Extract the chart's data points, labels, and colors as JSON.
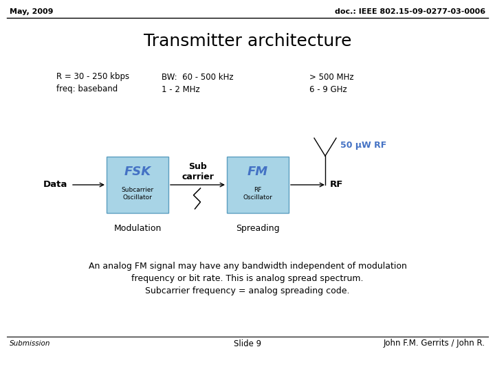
{
  "header_left": "May, 2009",
  "header_right": "doc.: IEEE 802.15-09-0277-03-0006",
  "title": "Transmitter architecture",
  "row1_col1": "R = 30 - 250 kbps",
  "row1_col2": "BW:  60 - 500 kHz",
  "row1_col3": "> 500 MHz",
  "row2_col1": "freq: baseband",
  "row2_col2": "1 - 2 MHz",
  "row2_col3": "6 - 9 GHz",
  "antenna_label": "50 μW RF",
  "fsk_label": "FSK",
  "fsk_sub": "Subcarrier\nOscillator",
  "fm_label": "FM",
  "fm_sub": "RF\nOscillator",
  "data_label": "Data",
  "subcarrier_label": "Sub\ncarrier",
  "rf_label": "RF",
  "modulation_label": "Modulation",
  "spreading_label": "Spreading",
  "body_text_line1": "An analog FM signal may have any bandwidth independent of modulation",
  "body_text_line2": "frequency or bit rate. This is analog spread spectrum.",
  "body_text_line3": "Subcarrier frequency = analog spreading code.",
  "footer_left": "Submission",
  "footer_center": "Slide 9",
  "footer_right": "John F.M. Gerrits / John R.",
  "box_color": "#a8d4e6",
  "box_edge_color": "#5a9dbf",
  "bg_color": "#ffffff",
  "header_line_color": "#000000",
  "footer_line_color": "#000000",
  "antenna_text_color": "#4472c4",
  "fsk_text_color": "#4472c4",
  "fm_text_color": "#4472c4"
}
